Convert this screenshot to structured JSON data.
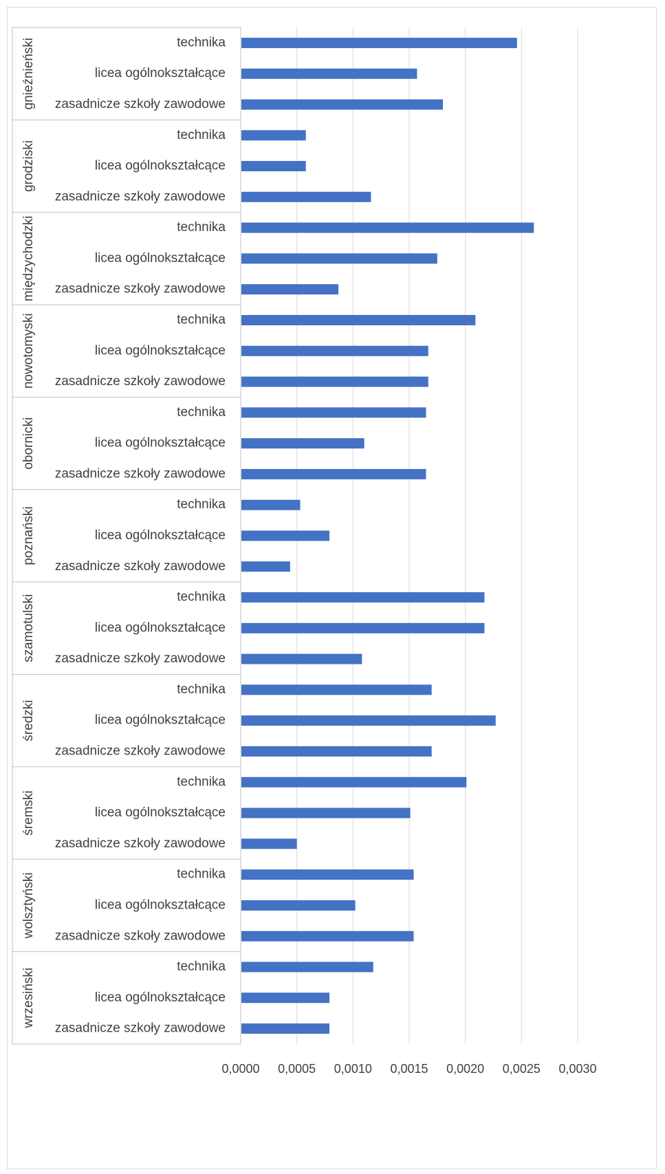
{
  "colors": {
    "bar": "#4472c4",
    "grid": "#d9d9d9",
    "text": "#404040",
    "axis": "#bfbfbf"
  },
  "chart_data": {
    "type": "bar",
    "orientation": "horizontal",
    "title": "",
    "xlabel": "",
    "ylabel": "",
    "xlim": [
      0,
      0.003
    ],
    "x_ticks": [
      "0,0000",
      "0,0005",
      "0,0010",
      "0,0015",
      "0,0020",
      "0,0025",
      "0,0030"
    ],
    "grid": true,
    "legend": "none",
    "subcategories": [
      "technika",
      "licea ogólnokształcące",
      "zasadnicze szkoły zawodowe"
    ],
    "groups": [
      {
        "name": "gnieźnieński",
        "values": [
          0.00246,
          0.00157,
          0.0018
        ]
      },
      {
        "name": "grodziski",
        "values": [
          0.00058,
          0.00058,
          0.00116
        ]
      },
      {
        "name": "międzychodzki",
        "values": [
          0.00261,
          0.00175,
          0.00087
        ]
      },
      {
        "name": "nowotomyski",
        "values": [
          0.00209,
          0.00167,
          0.00167
        ]
      },
      {
        "name": "obornicki",
        "values": [
          0.00165,
          0.0011,
          0.00165
        ]
      },
      {
        "name": "poznański",
        "values": [
          0.00053,
          0.00079,
          0.00044
        ]
      },
      {
        "name": "szamotulski",
        "values": [
          0.00217,
          0.00217,
          0.00108
        ]
      },
      {
        "name": "średzki",
        "values": [
          0.0017,
          0.00227,
          0.0017
        ]
      },
      {
        "name": "śremski",
        "values": [
          0.00201,
          0.00151,
          0.0005
        ]
      },
      {
        "name": "wolsztyński",
        "values": [
          0.00154,
          0.00102,
          0.00154
        ]
      },
      {
        "name": "wrzesiński",
        "values": [
          0.00118,
          0.00079,
          0.00079
        ]
      }
    ]
  }
}
